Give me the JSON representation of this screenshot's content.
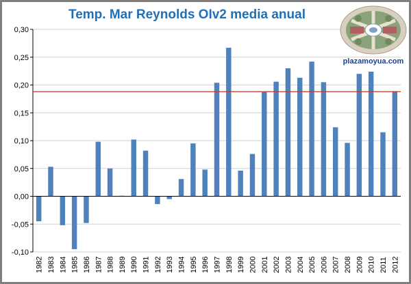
{
  "chart_data": {
    "type": "bar",
    "title": "Temp. Mar Reynolds OIv2 media anual",
    "xlabel": "",
    "ylabel": "",
    "ylim": [
      -0.1,
      0.3
    ],
    "y_ticks": [
      "0,30",
      "0,25",
      "0,20",
      "0,15",
      "0,10",
      "0,05",
      "0,00",
      "-0,05",
      "-0,10"
    ],
    "y_tick_values": [
      0.3,
      0.25,
      0.2,
      0.15,
      0.1,
      0.05,
      0.0,
      -0.05,
      -0.1
    ],
    "grid": "horizontal",
    "categories": [
      "1982",
      "1983",
      "1984",
      "1985",
      "1986",
      "1987",
      "1988",
      "1989",
      "1990",
      "1991",
      "1992",
      "1993",
      "1994",
      "1995",
      "1996",
      "1997",
      "1998",
      "1999",
      "2000",
      "2001",
      "2002",
      "2003",
      "2004",
      "2005",
      "2006",
      "2007",
      "2008",
      "2009",
      "2010",
      "2011",
      "2012"
    ],
    "values": [
      -0.045,
      0.053,
      -0.052,
      -0.095,
      -0.048,
      0.098,
      0.05,
      0.001,
      0.102,
      0.082,
      -0.014,
      -0.005,
      0.031,
      0.095,
      0.048,
      0.204,
      0.267,
      0.046,
      0.076,
      0.188,
      0.206,
      0.23,
      0.213,
      0.242,
      0.205,
      0.124,
      0.096,
      0.22,
      0.224,
      0.115,
      0.189
    ],
    "reference_line": 0.188,
    "colors": {
      "bar": "#4f81bd",
      "reference_line": "#c0392b",
      "grid": "#d0d0d0",
      "title": "#1f6fb9"
    }
  },
  "logo": {
    "text": "plazamoyua.com"
  }
}
